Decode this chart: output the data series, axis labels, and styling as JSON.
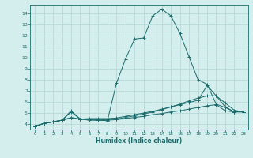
{
  "title": "",
  "xlabel": "Humidex (Indice chaleur)",
  "bg_color": "#d4eeee",
  "grid_color": "#b8d8d8",
  "line_color": "#1a6b6b",
  "xlim": [
    -0.5,
    23.5
  ],
  "ylim": [
    3.5,
    14.8
  ],
  "xticks": [
    0,
    1,
    2,
    3,
    4,
    5,
    6,
    7,
    8,
    9,
    10,
    11,
    12,
    13,
    14,
    15,
    16,
    17,
    18,
    19,
    20,
    21,
    22,
    23
  ],
  "yticks": [
    4,
    5,
    6,
    7,
    8,
    9,
    10,
    11,
    12,
    13,
    14
  ],
  "curves": [
    {
      "x": [
        0,
        1,
        2,
        3,
        4,
        5,
        6,
        7,
        8,
        9,
        10,
        11,
        12,
        13,
        14,
        15,
        16,
        17,
        18,
        19,
        20,
        21,
        22,
        23
      ],
      "y": [
        3.8,
        4.05,
        4.2,
        4.35,
        5.2,
        4.45,
        4.4,
        4.35,
        4.3,
        7.7,
        9.9,
        11.7,
        11.8,
        13.8,
        14.4,
        13.8,
        12.2,
        10.1,
        8.0,
        7.6,
        5.8,
        5.5,
        5.1,
        5.1
      ]
    },
    {
      "x": [
        0,
        1,
        2,
        3,
        4,
        5,
        6,
        7,
        8,
        9,
        10,
        11,
        12,
        13,
        14,
        15,
        16,
        17,
        18,
        19,
        20,
        21,
        22,
        23
      ],
      "y": [
        3.8,
        4.05,
        4.2,
        4.35,
        5.1,
        4.45,
        4.45,
        4.4,
        4.4,
        4.45,
        4.6,
        4.75,
        4.9,
        5.1,
        5.3,
        5.55,
        5.8,
        6.1,
        6.35,
        6.55,
        6.55,
        5.9,
        5.25,
        5.1
      ]
    },
    {
      "x": [
        0,
        1,
        2,
        3,
        4,
        5,
        6,
        7,
        8,
        9,
        10,
        11,
        12,
        13,
        14,
        15,
        16,
        17,
        18,
        19,
        20,
        21,
        22,
        23
      ],
      "y": [
        3.8,
        4.05,
        4.2,
        4.35,
        4.6,
        4.45,
        4.5,
        4.5,
        4.5,
        4.55,
        4.7,
        4.85,
        5.0,
        5.15,
        5.35,
        5.55,
        5.75,
        5.95,
        6.15,
        7.5,
        6.55,
        5.55,
        5.1,
        5.1
      ]
    },
    {
      "x": [
        0,
        1,
        2,
        3,
        4,
        5,
        6,
        7,
        8,
        9,
        10,
        11,
        12,
        13,
        14,
        15,
        16,
        17,
        18,
        19,
        20,
        21,
        22,
        23
      ],
      "y": [
        3.8,
        4.05,
        4.2,
        4.35,
        4.55,
        4.45,
        4.35,
        4.35,
        4.35,
        4.4,
        4.5,
        4.6,
        4.7,
        4.85,
        4.95,
        5.1,
        5.2,
        5.35,
        5.5,
        5.65,
        5.75,
        5.2,
        5.1,
        5.1
      ]
    }
  ]
}
